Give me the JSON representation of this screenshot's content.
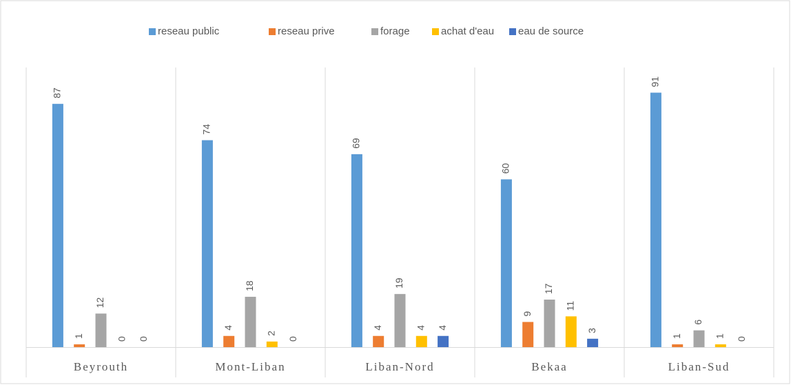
{
  "chart_data": {
    "type": "bar",
    "categories": [
      "Beyrouth",
      "Mont-Liban",
      "Liban-Nord",
      "Bekaa",
      "Liban-Sud"
    ],
    "series": [
      {
        "name": "reseau public",
        "color": "#5b9bd5",
        "values": [
          87,
          74,
          69,
          60,
          91
        ]
      },
      {
        "name": "reseau prive",
        "color": "#ed7d31",
        "values": [
          1,
          4,
          4,
          9,
          1
        ]
      },
      {
        "name": "forage",
        "color": "#a5a5a5",
        "values": [
          12,
          18,
          19,
          17,
          6
        ]
      },
      {
        "name": "achat d'eau",
        "color": "#ffc000",
        "values": [
          0,
          2,
          4,
          11,
          1
        ]
      },
      {
        "name": "eau de source",
        "color": "#4472c4",
        "values": [
          0,
          0,
          4,
          3,
          0
        ]
      }
    ],
    "ylim": [
      0,
      100
    ],
    "legend": "top"
  }
}
